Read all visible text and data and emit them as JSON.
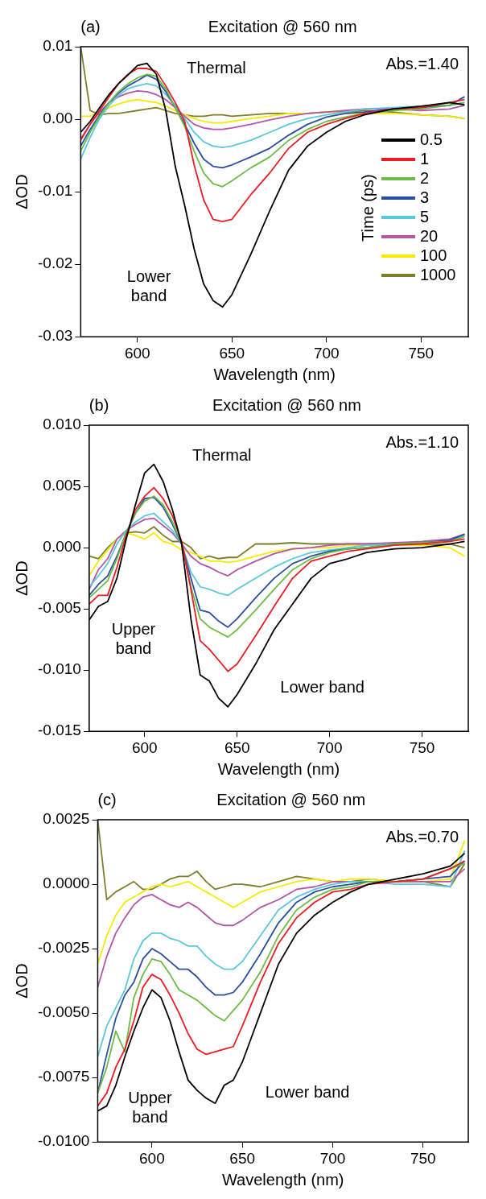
{
  "chart_data": [
    {
      "type": "line",
      "title": "Excitation @ 560 nm",
      "xlabel": "Wavelength (nm)",
      "ylabel": "ΔOD",
      "legend": "right",
      "legend_title": "Time (ps)",
      "xlim": [
        570,
        775
      ],
      "xticks": [
        600,
        650,
        700,
        750
      ],
      "ylim": [
        -0.03,
        0.01
      ],
      "yticks": [
        0.01,
        {
          "value": 0,
          "label": "0.00"
        },
        -0.01,
        -0.02,
        -0.03
      ],
      "annotations": [
        "(a)",
        "Abs.=1.40",
        "Thermal",
        "Lower\nband"
      ],
      "x": [
        570,
        575,
        580,
        585,
        590,
        595,
        600,
        605,
        610,
        615,
        620,
        625,
        630,
        635,
        640,
        645,
        650,
        660,
        670,
        680,
        690,
        700,
        710,
        720,
        735,
        750,
        765,
        773
      ],
      "series": [
        {
          "name": "0.5",
          "color": "#000000",
          "values": [
            -0.0018,
            -0.0003,
            0.0016,
            0.0034,
            0.0049,
            0.0061,
            0.0074,
            0.0077,
            0.0062,
            0.0012,
            -0.0065,
            -0.0119,
            -0.0179,
            -0.0227,
            -0.025,
            -0.0259,
            -0.0242,
            -0.0186,
            -0.0126,
            -0.007,
            -0.0037,
            -0.0018,
            -0.0003,
            0.0006,
            0.0014,
            0.0018,
            0.0023,
            0.002
          ]
        },
        {
          "name": "1",
          "color": "#ed1c24",
          "values": [
            -0.0029,
            -0.0007,
            0.0012,
            0.0031,
            0.0049,
            0.0062,
            0.007,
            0.007,
            0.0066,
            0.0046,
            0.0023,
            -0.0003,
            -0.0063,
            -0.0111,
            -0.0138,
            -0.0141,
            -0.0138,
            -0.0104,
            -0.0074,
            -0.004,
            -0.0018,
            -0.0007,
            0.0001,
            0.0008,
            0.0014,
            0.0016,
            0.0023,
            0.0027
          ]
        },
        {
          "name": "2",
          "color": "#6abd45",
          "values": [
            -0.0044,
            -0.0018,
            0.0004,
            0.0023,
            0.0038,
            0.0049,
            0.0057,
            0.0062,
            0.0059,
            0.0042,
            0.0016,
            -0.001,
            -0.0044,
            -0.0074,
            -0.0089,
            -0.0093,
            -0.0085,
            -0.0067,
            -0.0052,
            -0.0029,
            -0.0014,
            -0.0003,
            0.0003,
            0.0008,
            0.0012,
            0.0014,
            0.0019,
            0.0023
          ]
        },
        {
          "name": "3",
          "color": "#2b4ea2",
          "values": [
            -0.0037,
            -0.0014,
            0.0006,
            0.0023,
            0.0036,
            0.0046,
            0.0053,
            0.0061,
            0.0055,
            0.0038,
            0.0016,
            -0.0007,
            -0.0033,
            -0.0055,
            -0.0065,
            -0.0067,
            -0.0063,
            -0.0052,
            -0.004,
            -0.0022,
            -0.0007,
            0.0003,
            0.0008,
            0.001,
            0.0014,
            0.0016,
            0.0019,
            0.0031
          ]
        },
        {
          "name": "5",
          "color": "#5bc8dc",
          "values": [
            -0.0055,
            -0.0025,
            0.0001,
            0.0019,
            0.0033,
            0.0042,
            0.0046,
            0.0049,
            0.0046,
            0.0034,
            0.0019,
            0.0001,
            -0.0018,
            -0.0031,
            -0.0037,
            -0.0039,
            -0.0037,
            -0.0029,
            -0.0018,
            -0.0007,
            0.0001,
            0.0006,
            0.001,
            0.0014,
            0.0016,
            0.0018,
            0.0019,
            0.0023
          ]
        },
        {
          "name": "20",
          "color": "#b455a8",
          "values": [
            -0.0027,
            -0.0007,
            0.001,
            0.0023,
            0.0031,
            0.0036,
            0.0039,
            0.0038,
            0.0034,
            0.0027,
            0.0016,
            0.0004,
            -0.0007,
            -0.0012,
            -0.0014,
            -0.0014,
            -0.0012,
            -0.0007,
            -0.0001,
            0.0004,
            0.0008,
            0.001,
            0.0012,
            0.0014,
            0.0014,
            0.0012,
            0.0014,
            0.0019
          ]
        },
        {
          "name": "100",
          "color": "#f5ec00",
          "values": [
            0.0004,
            0.0004,
            0.001,
            0.0016,
            0.0021,
            0.0025,
            0.0027,
            0.0025,
            0.0023,
            0.0018,
            0.0012,
            0.0006,
            0.0001,
            -0.0003,
            -0.0005,
            -0.0005,
            -0.0003,
            0.0001,
            0.0004,
            0.0008,
            0.0008,
            0.001,
            0.0008,
            0.0008,
            0.0008,
            0.0006,
            0.0004,
            0.0001
          ]
        },
        {
          "name": "1000",
          "color": "#7f7f2a",
          "values": [
            0.01,
            0.0012,
            0.0006,
            0.0008,
            0.0008,
            0.001,
            0.0012,
            0.0014,
            0.0016,
            0.0012,
            0.0008,
            0.0006,
            0.0004,
            0.0004,
            0.0006,
            0.0006,
            0.0004,
            0.0006,
            0.0008,
            0.0008,
            0.0008,
            0.001,
            0.001,
            0.0012,
            0.001,
            0.0006,
            0.0004,
            0.0001
          ]
        }
      ]
    },
    {
      "type": "line",
      "title": "Excitation @ 560 nm",
      "xlabel": "Wavelength (nm)",
      "ylabel": "ΔOD",
      "xlim": [
        570,
        775
      ],
      "xticks": [
        600,
        650,
        700,
        750
      ],
      "ylim": [
        -0.015,
        0.01
      ],
      "yticks": [
        {
          "value": 0.01,
          "label": "0.010"
        },
        0.005,
        {
          "value": 0,
          "label": "0.000"
        },
        -0.005,
        {
          "value": -0.01,
          "label": "-0.010"
        },
        -0.015
      ],
      "annotations": [
        "(b)",
        "Abs.=1.10",
        "Thermal",
        "Upper\nband",
        "Lower band"
      ],
      "x": [
        570,
        575,
        580,
        585,
        590,
        595,
        600,
        605,
        610,
        615,
        620,
        625,
        630,
        635,
        640,
        645,
        650,
        660,
        670,
        680,
        690,
        700,
        710,
        720,
        735,
        750,
        765,
        773
      ],
      "series": [
        {
          "color": "#000000",
          "values": [
            -0.0059,
            -0.0048,
            -0.0044,
            -0.0025,
            0.0007,
            0.0035,
            0.0061,
            0.0068,
            0.0054,
            0.0031,
            0.0003,
            -0.0058,
            -0.0104,
            -0.0109,
            -0.0123,
            -0.013,
            -0.012,
            -0.0095,
            -0.0067,
            -0.0046,
            -0.0025,
            -0.0013,
            -0.0009,
            -0.0004,
            -0.0001,
            0,
            0.0003,
            0.0005
          ]
        },
        {
          "color": "#ed1c24",
          "values": [
            -0.0046,
            -0.0039,
            -0.0039,
            -0.0016,
            0.001,
            0.0031,
            0.0042,
            0.0049,
            0.004,
            0.0026,
            0.0005,
            -0.0034,
            -0.0076,
            -0.0083,
            -0.0092,
            -0.0101,
            -0.0095,
            -0.0072,
            -0.0048,
            -0.0025,
            -0.0011,
            -0.0007,
            -0.0003,
            -0.0001,
            0.0002,
            0.0003,
            0.0005,
            0.0007
          ]
        },
        {
          "color": "#6abd45",
          "values": [
            -0.0041,
            -0.0034,
            -0.0027,
            -0.0009,
            0.0012,
            0.0028,
            0.0038,
            0.0042,
            0.0035,
            0.0021,
            0.0003,
            -0.0032,
            -0.0058,
            -0.0065,
            -0.0069,
            -0.0073,
            -0.0067,
            -0.0051,
            -0.0034,
            -0.0018,
            -0.0009,
            -0.0004,
            -0.0001,
            0,
            0.0003,
            0.0004,
            0.0005,
            0.0009
          ]
        },
        {
          "color": "#2b4ea2",
          "values": [
            -0.0039,
            -0.003,
            -0.0023,
            -0.0007,
            0.0012,
            0.0028,
            0.004,
            0.0041,
            0.0033,
            0.0019,
            0.0003,
            -0.0025,
            -0.0051,
            -0.0053,
            -0.006,
            -0.0065,
            -0.0058,
            -0.0041,
            -0.0025,
            -0.0013,
            -0.0007,
            -0.0003,
            -0.0001,
            0,
            0.0003,
            0.0004,
            0.0006,
            0.0011
          ]
        },
        {
          "color": "#5bc8dc",
          "values": [
            -0.0032,
            -0.0023,
            -0.0013,
            0.0003,
            0.0014,
            0.0021,
            0.0026,
            0.0028,
            0.0021,
            0.0014,
            0.0003,
            -0.002,
            -0.0032,
            -0.0034,
            -0.0037,
            -0.0039,
            -0.0034,
            -0.0025,
            -0.0016,
            -0.0009,
            -0.0004,
            -0.0002,
            0,
            0.0002,
            0.0003,
            0.0004,
            0.0006,
            0.001
          ]
        },
        {
          "color": "#b455a8",
          "values": [
            -0.0034,
            -0.0018,
            -0.0009,
            0.0007,
            0.0014,
            0.0019,
            0.0023,
            0.0024,
            0.0018,
            0.0012,
            0.0003,
            -0.0007,
            -0.0013,
            -0.0016,
            -0.002,
            -0.0023,
            -0.0018,
            -0.0011,
            -0.0005,
            -0.0001,
            0,
            0.0002,
            0.0003,
            0.0003,
            0.0004,
            0.0005,
            0.0007,
            0.0011
          ]
        },
        {
          "color": "#f5ec00",
          "values": [
            -0.0023,
            -0.0011,
            -0.0002,
            0.0007,
            0.0012,
            0.001,
            0.0007,
            0.0012,
            0.0005,
            0.0003,
            -0.0002,
            -0.0004,
            -0.0007,
            -0.0011,
            -0.0011,
            -0.0012,
            -0.0011,
            -0.0007,
            -0.0003,
            -0.0001,
            0,
            0,
            0.0002,
            0.0002,
            0.0002,
            0.0002,
            0,
            -0.0007
          ]
        },
        {
          "color": "#7f7f2a",
          "values": [
            -0.0007,
            -0.0009,
            0,
            0.0007,
            0.0012,
            0.0013,
            0.0012,
            0.0017,
            0.001,
            0.0005,
            0.0005,
            0,
            -0.0009,
            -0.0007,
            -0.0009,
            -0.0008,
            -0.0008,
            0.0003,
            0.0003,
            0.0004,
            0.0003,
            0.0003,
            0.0003,
            0.0003,
            0.0003,
            0.0002,
            0.0003,
            0
          ]
        }
      ]
    },
    {
      "type": "line",
      "title": "Excitation @ 560 nm",
      "xlabel": "Wavelength (nm)",
      "ylabel": "ΔOD",
      "xlim": [
        570,
        775
      ],
      "xticks": [
        600,
        650,
        700,
        750
      ],
      "ylim": [
        -0.01,
        0.0025
      ],
      "yticks": [
        0.0025,
        {
          "value": 0,
          "label": "0.0000"
        },
        -0.0025,
        {
          "value": -0.005,
          "label": "-0.0050"
        },
        -0.0075,
        {
          "value": -0.01,
          "label": "-0.0100"
        }
      ],
      "annotations": [
        "(c)",
        "Abs.=0.70",
        "Upper\nband",
        "Lower band"
      ],
      "x": [
        570,
        575,
        580,
        585,
        590,
        595,
        600,
        605,
        610,
        615,
        620,
        625,
        630,
        635,
        640,
        645,
        650,
        660,
        670,
        680,
        690,
        700,
        710,
        720,
        735,
        750,
        765,
        773
      ],
      "series": [
        {
          "color": "#000000",
          "values": [
            -0.0088,
            -0.0086,
            -0.0078,
            -0.0067,
            -0.0057,
            -0.0048,
            -0.0041,
            -0.0044,
            -0.0053,
            -0.0065,
            -0.0076,
            -0.008,
            -0.0083,
            -0.0085,
            -0.0078,
            -0.0076,
            -0.0069,
            -0.005,
            -0.0031,
            -0.0019,
            -0.0012,
            -0.0007,
            -0.0003,
            0,
            0.0002,
            0.0004,
            0.0007,
            0.0012
          ]
        },
        {
          "color": "#ed1c24",
          "values": [
            -0.0086,
            -0.0081,
            -0.0071,
            -0.0064,
            -0.0053,
            -0.004,
            -0.0035,
            -0.0037,
            -0.0043,
            -0.005,
            -0.0058,
            -0.0064,
            -0.0066,
            -0.0065,
            -0.0064,
            -0.0063,
            -0.0055,
            -0.0038,
            -0.0023,
            -0.0013,
            -0.0007,
            -0.0003,
            -0.0002,
            0,
            0.0001,
            0.0002,
            0.0006,
            0.0009
          ]
        },
        {
          "color": "#6abd45",
          "values": [
            -0.0081,
            -0.0071,
            -0.0057,
            -0.0065,
            -0.0044,
            -0.0035,
            -0.0029,
            -0.003,
            -0.0035,
            -0.0041,
            -0.0043,
            -0.0045,
            -0.0048,
            -0.0051,
            -0.0053,
            -0.0049,
            -0.0045,
            -0.0034,
            -0.002,
            -0.001,
            -0.0005,
            -0.0002,
            -0.0001,
            0.0001,
            0.0001,
            0.0002,
            0.0006,
            0.0008
          ]
        },
        {
          "color": "#2b4ea2",
          "values": [
            -0.0081,
            -0.0066,
            -0.0052,
            -0.0043,
            -0.0038,
            -0.0029,
            -0.0025,
            -0.0027,
            -0.003,
            -0.0033,
            -0.0033,
            -0.0036,
            -0.004,
            -0.0043,
            -0.0043,
            -0.0042,
            -0.0038,
            -0.0027,
            -0.0015,
            -0.0007,
            -0.0003,
            -0.0001,
            0,
            0.0001,
            0.0001,
            0.0002,
            0.0003,
            0.0009
          ]
        },
        {
          "color": "#5bc8dc",
          "values": [
            -0.0067,
            -0.0055,
            -0.0048,
            -0.0041,
            -0.0029,
            -0.0022,
            -0.0019,
            -0.0019,
            -0.0021,
            -0.0022,
            -0.0024,
            -0.0024,
            -0.0028,
            -0.0031,
            -0.0033,
            -0.0033,
            -0.003,
            -0.002,
            -0.001,
            -0.0005,
            -0.0002,
            0,
            0.0001,
            0.0001,
            0,
            0,
            -0.0001,
            0.0013
          ]
        },
        {
          "color": "#b455a8",
          "values": [
            -0.004,
            -0.0028,
            -0.0019,
            -0.0013,
            -0.0008,
            -0.0005,
            -0.0004,
            -0.0006,
            -0.0008,
            -0.0009,
            -0.0007,
            -0.0009,
            -0.0012,
            -0.0015,
            -0.0016,
            -0.0016,
            -0.0014,
            -0.0009,
            -0.0006,
            -0.0002,
            -0.0001,
            0.0001,
            0.0001,
            0.0001,
            0.0001,
            0.0001,
            0.0001,
            0.0006
          ]
        },
        {
          "color": "#f5ec00",
          "values": [
            -0.0031,
            -0.002,
            -0.0012,
            -0.0007,
            -0.0005,
            -0.0003,
            -0.0001,
            0,
            -0.0001,
            0,
            0.0001,
            -0.0001,
            -0.0003,
            -0.0005,
            -0.0007,
            -0.0009,
            -0.0007,
            -0.0003,
            -0.0001,
            0.0001,
            0.0002,
            0.0001,
            0.0002,
            0.0002,
            0.0001,
            0.0001,
            0.0002,
            0.0017
          ]
        },
        {
          "color": "#7f7f2a",
          "values": [
            0.0025,
            -0.0006,
            -0.0003,
            -0.0001,
            0.0001,
            -0.0002,
            -0.0002,
            0,
            0.0002,
            0.0003,
            0.0003,
            0.0005,
            0.0001,
            -0.0002,
            -0.0001,
            0,
            0,
            -0.0001,
            0.0001,
            0.0003,
            0.0002,
            0.0001,
            0.0001,
            0.0002,
            0.0001,
            0.0001,
            -0.0001,
            0.0008
          ]
        }
      ]
    }
  ]
}
